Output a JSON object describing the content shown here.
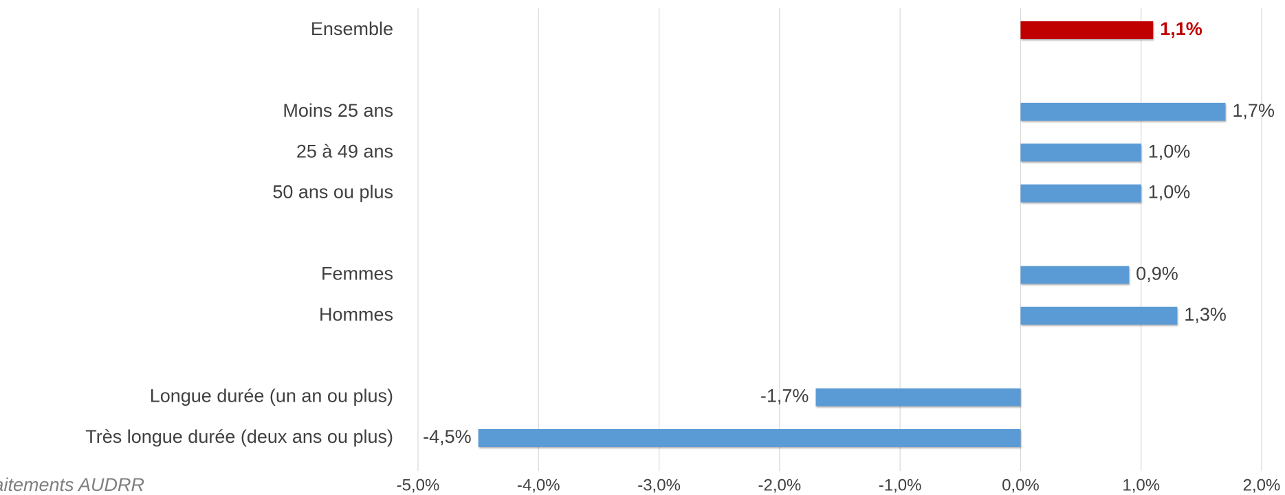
{
  "chart_data": {
    "type": "bar",
    "orientation": "horizontal",
    "categories": [
      "Ensemble",
      null,
      "Moins 25 ans",
      "25 à 49 ans",
      "50 ans ou plus",
      null,
      "Femmes",
      "Hommes",
      null,
      "Longue durée (un an ou plus)",
      "Très longue durée (deux ans ou plus)"
    ],
    "values": [
      1.1,
      null,
      1.7,
      1.0,
      1.0,
      null,
      0.9,
      1.3,
      null,
      -1.7,
      -4.5
    ],
    "value_labels": [
      "1,1%",
      null,
      "1,7%",
      "1,0%",
      "1,0%",
      null,
      "0,9%",
      "1,3%",
      null,
      "-1,7%",
      "-4,5%"
    ],
    "colors": [
      "#c00000",
      null,
      "#5b9bd5",
      "#5b9bd5",
      "#5b9bd5",
      null,
      "#5b9bd5",
      "#5b9bd5",
      null,
      "#5b9bd5",
      "#5b9bd5"
    ],
    "xlim": [
      -5.0,
      2.0
    ],
    "xticks": [
      {
        "value": -5.0,
        "label": "-5,0%"
      },
      {
        "value": -4.0,
        "label": "-4,0%"
      },
      {
        "value": -3.0,
        "label": "-3,0%"
      },
      {
        "value": -2.0,
        "label": "-2,0%"
      },
      {
        "value": -1.0,
        "label": "-1,0%"
      },
      {
        "value": 0.0,
        "label": "0,0%"
      },
      {
        "value": 1.0,
        "label": "1,0%"
      },
      {
        "value": 2.0,
        "label": "2,0%"
      }
    ],
    "grid": true,
    "source": "Traitements AUDRR"
  }
}
